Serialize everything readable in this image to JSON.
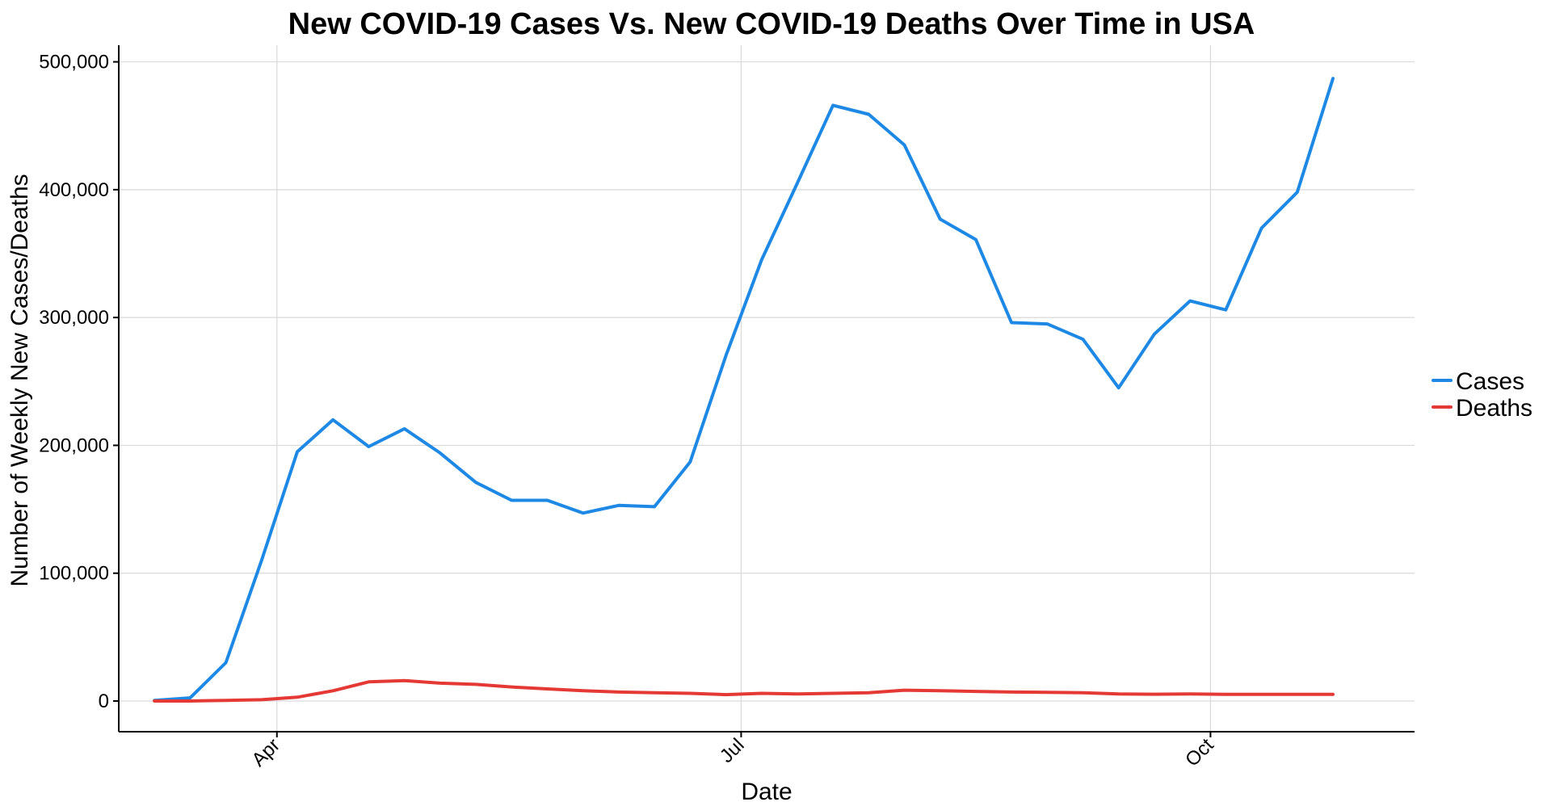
{
  "chart_data": {
    "type": "line",
    "title": "New COVID-19 Cases Vs. New COVID-19 Deaths Over Time in USA",
    "xlabel": "Date",
    "ylabel": "Number of Weekly New Cases/Deaths",
    "xlim": [
      "2020-03-01",
      "2020-11-10"
    ],
    "ylim": [
      -24000,
      513000
    ],
    "x_ticks": [
      {
        "date": "2020-04-01",
        "label": "Apr"
      },
      {
        "date": "2020-07-01",
        "label": "Jul"
      },
      {
        "date": "2020-10-01",
        "label": "Oct"
      }
    ],
    "y_ticks": [
      {
        "value": 0,
        "label": "0"
      },
      {
        "value": 100000,
        "label": "100,000"
      },
      {
        "value": 200000,
        "label": "200,000"
      },
      {
        "value": 300000,
        "label": "300,000"
      },
      {
        "value": 400000,
        "label": "400,000"
      },
      {
        "value": 500000,
        "label": "500,000"
      }
    ],
    "grid": true,
    "legend_position": "right",
    "x": [
      "2020-03-08",
      "2020-03-15",
      "2020-03-22",
      "2020-03-29",
      "2020-04-05",
      "2020-04-12",
      "2020-04-19",
      "2020-04-26",
      "2020-05-03",
      "2020-05-10",
      "2020-05-17",
      "2020-05-24",
      "2020-05-31",
      "2020-06-07",
      "2020-06-14",
      "2020-06-21",
      "2020-06-28",
      "2020-07-05",
      "2020-07-12",
      "2020-07-19",
      "2020-07-26",
      "2020-08-02",
      "2020-08-09",
      "2020-08-16",
      "2020-08-23",
      "2020-08-30",
      "2020-09-06",
      "2020-09-13",
      "2020-09-20",
      "2020-09-27",
      "2020-10-04",
      "2020-10-11",
      "2020-10-18",
      "2020-10-25"
    ],
    "series": [
      {
        "name": "Cases",
        "color": "#1e88e5",
        "values": [
          500,
          2500,
          30000,
          110000,
          195000,
          220000,
          199000,
          213000,
          194000,
          171000,
          157000,
          157000,
          147000,
          153000,
          152000,
          187000,
          270000,
          345000,
          405000,
          466000,
          459000,
          435000,
          377000,
          361000,
          296000,
          295000,
          283000,
          245000,
          287000,
          313000,
          306000,
          370000,
          398000,
          487000
        ]
      },
      {
        "name": "Deaths",
        "color": "#e53935",
        "values": [
          0,
          0,
          500,
          1000,
          3000,
          8000,
          15000,
          16000,
          14000,
          13000,
          11000,
          9500,
          8000,
          7000,
          6500,
          6000,
          5000,
          6000,
          5500,
          6000,
          6500,
          8500,
          8000,
          7500,
          7000,
          6800,
          6500,
          5500,
          5300,
          5500,
          5200,
          5200,
          5200,
          5200
        ]
      }
    ]
  }
}
